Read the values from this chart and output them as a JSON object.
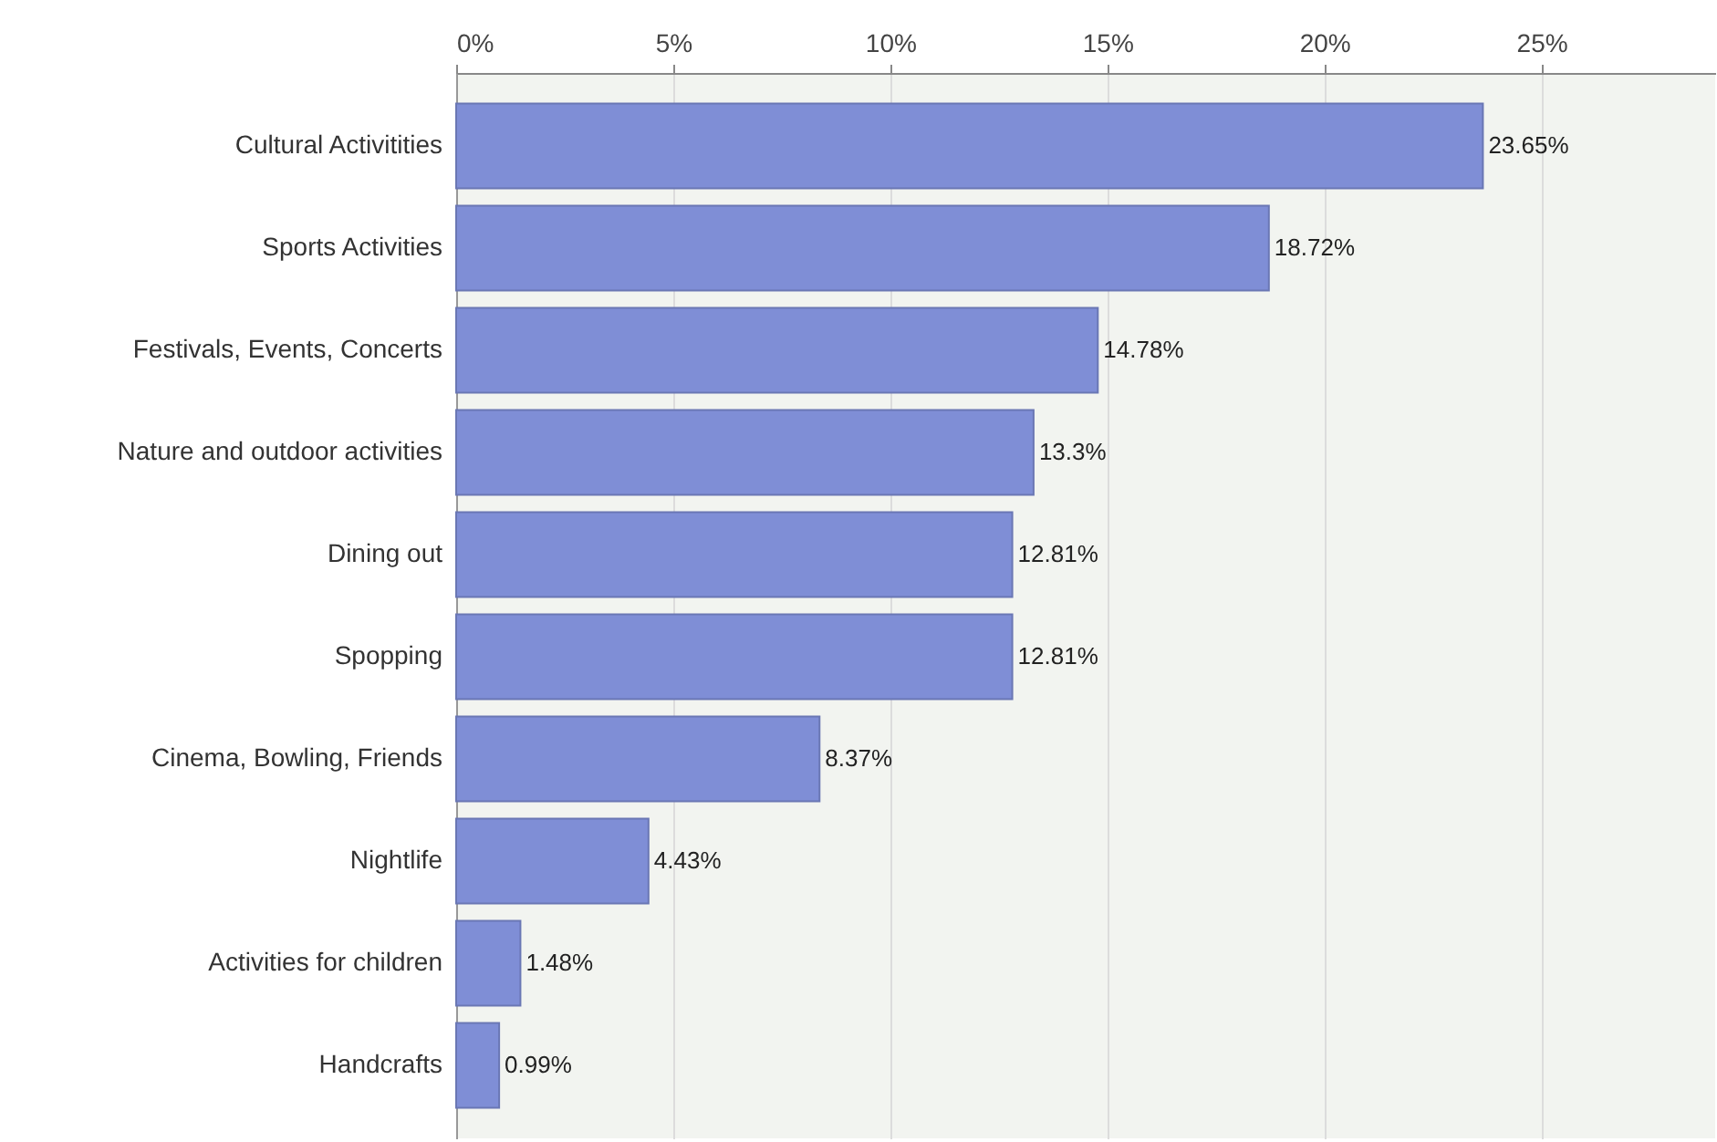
{
  "chart_data": {
    "type": "bar",
    "orientation": "horizontal",
    "categories": [
      "Cultural Activitities",
      "Sports Activities",
      "Festivals, Events, Concerts",
      "Nature and outdoor activities",
      "Dining out",
      "Spopping",
      "Cinema, Bowling, Friends",
      "Nightlife",
      "Activities for children",
      "Handcrafts"
    ],
    "values": [
      23.65,
      18.72,
      14.78,
      13.3,
      12.81,
      12.81,
      8.37,
      4.43,
      1.48,
      0.99
    ],
    "value_labels": [
      "23.65%",
      "18.72%",
      "14.78%",
      "13.3%",
      "12.81%",
      "12.81%",
      "8.37%",
      "4.43%",
      "1.48%",
      "0.99%"
    ],
    "color": "#7f8ed6",
    "xlim": [
      0,
      29
    ],
    "xticks": [
      {
        "value": 0,
        "label": "0%"
      },
      {
        "value": 5,
        "label": "5%"
      },
      {
        "value": 10,
        "label": "10%"
      },
      {
        "value": 15,
        "label": "15%"
      },
      {
        "value": 20,
        "label": "20%"
      },
      {
        "value": 25,
        "label": "25%"
      }
    ],
    "grid": "x"
  }
}
